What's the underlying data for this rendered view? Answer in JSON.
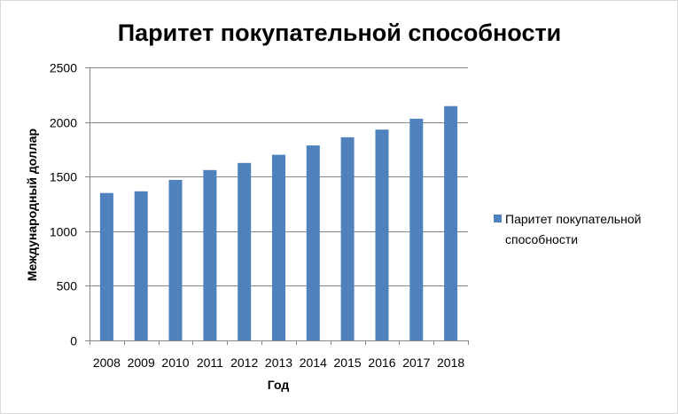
{
  "chart_data": {
    "type": "bar",
    "title": "Паритет покупательной способности",
    "xlabel": "Год",
    "ylabel": "Международный доллар",
    "categories": [
      "2008",
      "2009",
      "2010",
      "2011",
      "2012",
      "2013",
      "2014",
      "2015",
      "2016",
      "2017",
      "2018"
    ],
    "series": [
      {
        "name": "Паритет покупательной способности",
        "values": [
          1350,
          1365,
          1470,
          1560,
          1625,
          1700,
          1785,
          1860,
          1930,
          2030,
          2145
        ],
        "color": "#4f81bd"
      }
    ],
    "yticks": [
      "0",
      "500",
      "1000",
      "1500",
      "2000",
      "2500"
    ],
    "ylim": [
      0,
      2500
    ],
    "grid": true,
    "legend": {
      "placement": "right",
      "line1": "Паритет покупательной",
      "line2": "способности"
    }
  }
}
